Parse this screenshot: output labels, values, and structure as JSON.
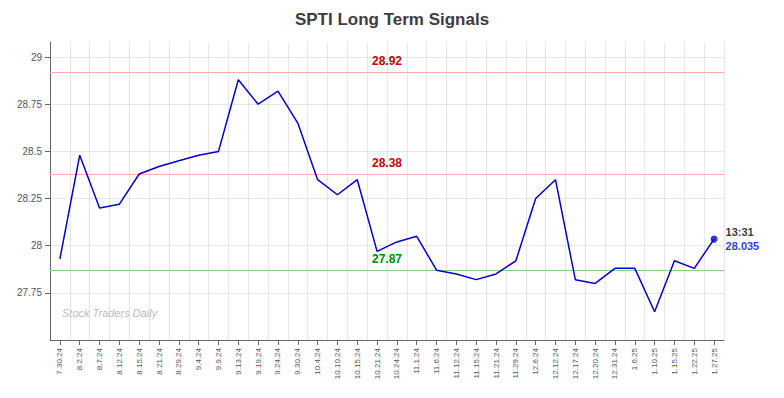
{
  "chart_data": {
    "type": "line",
    "title": "SPTI Long Term Signals",
    "categories": [
      "7.30.24",
      "8.2.24",
      "8.7.24",
      "8.12.24",
      "8.15.24",
      "8.21.24",
      "8.29.24",
      "9.4.24",
      "9.9.24",
      "9.13.24",
      "9.19.24",
      "9.24.24",
      "9.30.24",
      "10.4.24",
      "10.10.24",
      "10.15.24",
      "10.21.24",
      "10.24.24",
      "11.1.24",
      "11.6.24",
      "11.12.24",
      "11.15.24",
      "11.21.24",
      "11.29.24",
      "12.6.24",
      "12.12.24",
      "12.17.24",
      "12.20.24",
      "12.31.24",
      "1.6.25",
      "1.10.25",
      "1.15.25",
      "1.22.25",
      "1.27.25"
    ],
    "values": [
      27.93,
      28.48,
      28.2,
      28.22,
      28.38,
      28.42,
      28.45,
      28.48,
      28.5,
      28.88,
      28.75,
      28.82,
      28.65,
      28.35,
      28.27,
      28.35,
      27.97,
      28.02,
      28.05,
      27.87,
      27.85,
      27.82,
      27.85,
      27.92,
      28.25,
      28.35,
      27.82,
      27.8,
      27.88,
      27.88,
      27.65,
      27.92,
      27.88,
      28.035
    ],
    "color": "#0000cc",
    "ylim": [
      27.5,
      29.08
    ],
    "yticks": [
      27.75,
      28,
      28.25,
      28.5,
      28.75,
      29
    ],
    "grid": true,
    "hlines": [
      {
        "value": 28.92,
        "label": "28.92",
        "color": "#ffaaaa",
        "label_color": "#cc0000"
      },
      {
        "value": 28.38,
        "label": "28.38",
        "color": "#ffaaaa",
        "label_color": "#cc0000"
      },
      {
        "value": 27.87,
        "label": "27.87",
        "color": "#88cc88",
        "label_color": "#008800"
      }
    ],
    "annotations": [
      {
        "text": "13:31",
        "x": "1.27.25",
        "y": 28.035,
        "color": "black"
      },
      {
        "text": "28.035",
        "x": "1.27.25",
        "y": 28.035,
        "color": "#0000cc"
      },
      {
        "text": "Stock Traders Daily",
        "color": "#bbbbbb"
      }
    ]
  }
}
